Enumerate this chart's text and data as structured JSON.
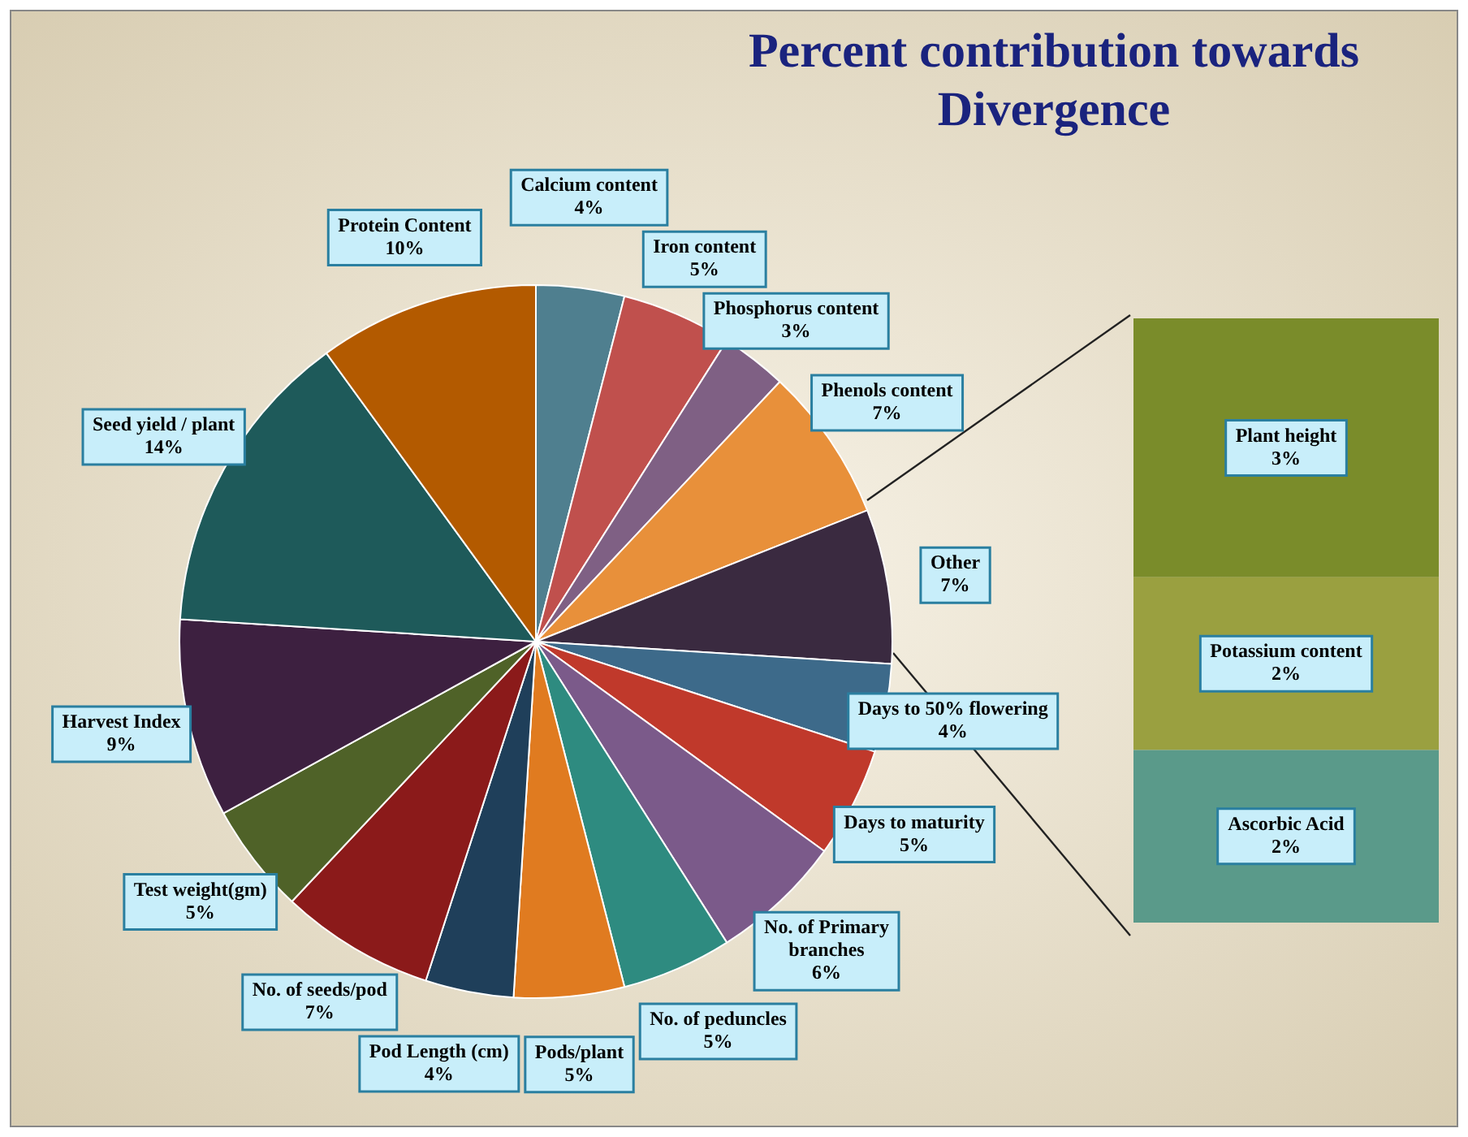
{
  "chart_data": [
    {
      "type": "pie",
      "title": "Percent contribution towards Divergence",
      "categories": [
        "Calcium content",
        "Iron content",
        "Phosphorus content",
        "Phenols content",
        "Other",
        "Days to 50% flowering",
        "Days to maturity",
        "No. of Primary branches",
        "No. of peduncles",
        "Pods/plant",
        "Pod Length (cm)",
        "No. of seeds/pod",
        "Test weight(gm)",
        "Harvest Index",
        "Seed yield / plant",
        "Protein Content"
      ],
      "values": [
        4,
        5,
        3,
        7,
        7,
        4,
        5,
        6,
        5,
        5,
        4,
        7,
        5,
        9,
        14,
        10
      ],
      "value_labels": [
        "4%",
        "5%",
        "3%",
        "7%",
        "7%",
        "4%",
        "5%",
        "6%",
        "5%",
        "5%",
        "4%",
        "7%",
        "5%",
        "9%",
        "14%",
        "10%"
      ],
      "colors": [
        "#4f7f8f",
        "#c0504d",
        "#7f6084",
        "#e8903a",
        "#3a2a40",
        "#3d6a8a",
        "#c0392b",
        "#7b5a8a",
        "#2e8b80",
        "#e07b20",
        "#1f3f5a",
        "#8b1a1a",
        "#4f6228",
        "#3d2040",
        "#1e5a5a",
        "#b35a00"
      ]
    },
    {
      "type": "bar",
      "stacked": true,
      "categories": [
        null
      ],
      "series": [
        {
          "name": "Ascorbic Acid",
          "color": "#5a9a8a",
          "values": [
            2
          ],
          "value_labels": [
            "2%"
          ]
        },
        {
          "name": "Potassium content",
          "color": "#9aa040",
          "values": [
            2
          ],
          "value_labels": [
            "2%"
          ]
        },
        {
          "name": "Plant height",
          "color": "#7a8c2a",
          "values": [
            3
          ],
          "value_labels": [
            "3%"
          ]
        }
      ]
    }
  ]
}
